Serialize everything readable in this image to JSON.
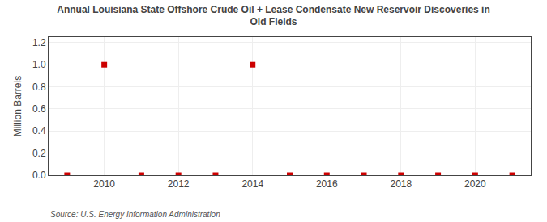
{
  "chart_data": {
    "type": "scatter",
    "title": "Annual Louisiana State Offshore Crude Oil + Lease Condensate New Reservoir Discoveries in\nOld Fields",
    "ylabel": "Million Barrels",
    "annotations": [
      "Source: U.S. Energy Information Administration"
    ],
    "x": [
      2009,
      2010,
      2011,
      2012,
      2013,
      2014,
      2015,
      2016,
      2017,
      2018,
      2019,
      2020,
      2021
    ],
    "values": [
      0.0,
      1.0,
      0.0,
      0.0,
      0.0,
      1.0,
      0.0,
      0.0,
      0.0,
      0.0,
      0.0,
      0.0,
      0.0
    ],
    "color": "#cc0000",
    "marker": "square",
    "xlim": [
      2008.5,
      2021.5
    ],
    "ylim": [
      0.0,
      1.25
    ],
    "xticks": [
      2010,
      2012,
      2014,
      2016,
      2018,
      2020
    ],
    "yticks": [
      {
        "value": 0,
        "label": "0.0"
      },
      0.2,
      0.4,
      0.6,
      0.8,
      {
        "value": 1,
        "label": "1.0"
      },
      1.2
    ],
    "grid": true
  }
}
